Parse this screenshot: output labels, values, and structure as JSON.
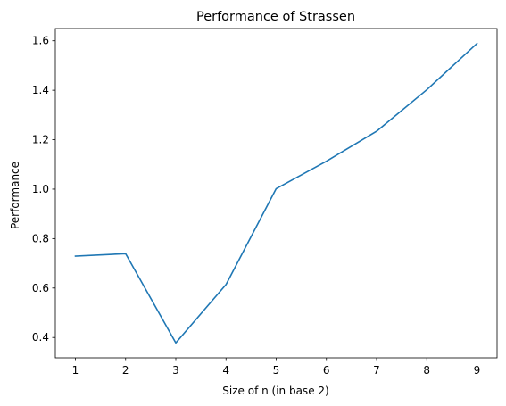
{
  "chart_data": {
    "type": "line",
    "title": "Performance of Strassen",
    "xlabel": "Size of n (in base 2)",
    "ylabel": "Performance",
    "x": [
      1,
      2,
      3,
      4,
      5,
      6,
      7,
      8,
      9
    ],
    "series": [
      {
        "values": [
          0.729,
          0.739,
          0.378,
          0.614,
          1.002,
          1.113,
          1.234,
          1.402,
          1.589
        ],
        "color": "#1f77b4"
      }
    ],
    "xlim": [
      0.6,
      9.4
    ],
    "ylim": [
      0.3177,
      1.6495
    ],
    "xticks": [
      "1",
      "2",
      "3",
      "4",
      "5",
      "6",
      "7",
      "8",
      "9"
    ],
    "yticks": [
      "0.4",
      "0.6",
      "0.8",
      "1.0",
      "1.2",
      "1.4",
      "1.6"
    ],
    "grid": false,
    "legend": false
  }
}
